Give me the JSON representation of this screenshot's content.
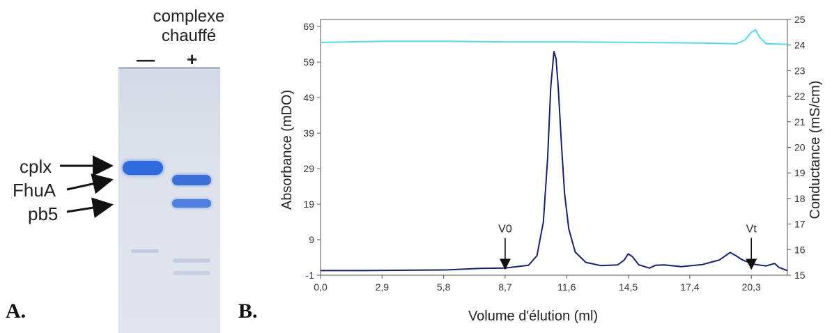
{
  "panel_a": {
    "letter": "A.",
    "title_line1": "complexe",
    "title_line2": "chauffé",
    "lanes": [
      "—",
      "+"
    ],
    "band_labels": [
      "cplx",
      "FhuA",
      "pb5"
    ],
    "band_color": "#2f6bdc"
  },
  "panel_b": {
    "letter": "B.",
    "markers": [
      "V0",
      "Vt"
    ]
  },
  "chart_data": {
    "type": "line",
    "xlabel": "Volume d'élution (ml)",
    "ylabel": "Absorbance (mDO)",
    "y2label": "Conductance (mS/cm)",
    "xlim": [
      0,
      22
    ],
    "ylim": [
      -1,
      71
    ],
    "y2lim": [
      15,
      25
    ],
    "x_ticks": [
      "0,0",
      "2,9",
      "5,8",
      "8,7",
      "11,6",
      "14,5",
      "17,4",
      "20,3"
    ],
    "x_tick_values": [
      0,
      2.9,
      5.8,
      8.7,
      11.6,
      14.5,
      17.4,
      20.3
    ],
    "y_ticks": [
      -1,
      9,
      19,
      29,
      39,
      49,
      59,
      69
    ],
    "y2_ticks": [
      15,
      16,
      17,
      18,
      19,
      20,
      21,
      22,
      23,
      24,
      25
    ],
    "grid": false,
    "series": [
      {
        "axis": "left",
        "color": "#1a1f6e",
        "x": [
          0,
          2,
          4,
          6,
          7.5,
          8.7,
          9.8,
          10.2,
          10.5,
          10.7,
          10.85,
          11.0,
          11.1,
          11.2,
          11.35,
          11.5,
          11.7,
          12.0,
          12.5,
          13.2,
          14.0,
          14.3,
          14.5,
          14.7,
          15.0,
          15.5,
          15.8,
          16.2,
          17.0,
          18.0,
          18.8,
          19.3,
          19.6,
          19.8,
          20.0,
          20.4,
          21.0,
          21.4,
          21.6,
          22.0
        ],
        "y": [
          0.3,
          0.3,
          0.4,
          0.5,
          0.9,
          1.0,
          1.8,
          4.5,
          14,
          32,
          52,
          62,
          60,
          52,
          36,
          22,
          12,
          5.5,
          2.6,
          1.7,
          1.9,
          3.2,
          5.0,
          4.2,
          1.9,
          1.0,
          1.8,
          1.9,
          1.4,
          2.0,
          3.3,
          5.4,
          4.4,
          3.6,
          3.0,
          2.1,
          1.6,
          2.3,
          1.2,
          0.3
        ]
      },
      {
        "axis": "right",
        "color": "#5ad6e6",
        "x": [
          0,
          3,
          6,
          9,
          12,
          15,
          18,
          19.6,
          20.0,
          20.3,
          20.5,
          20.7,
          21.0,
          22.0
        ],
        "y": [
          24.1,
          24.15,
          24.15,
          24.12,
          24.12,
          24.1,
          24.08,
          24.05,
          24.2,
          24.5,
          24.6,
          24.3,
          24.05,
          24.03
        ]
      }
    ],
    "annotations": [
      {
        "text": "V0",
        "x": 8.7
      },
      {
        "text": "Vt",
        "x": 20.3
      }
    ]
  }
}
